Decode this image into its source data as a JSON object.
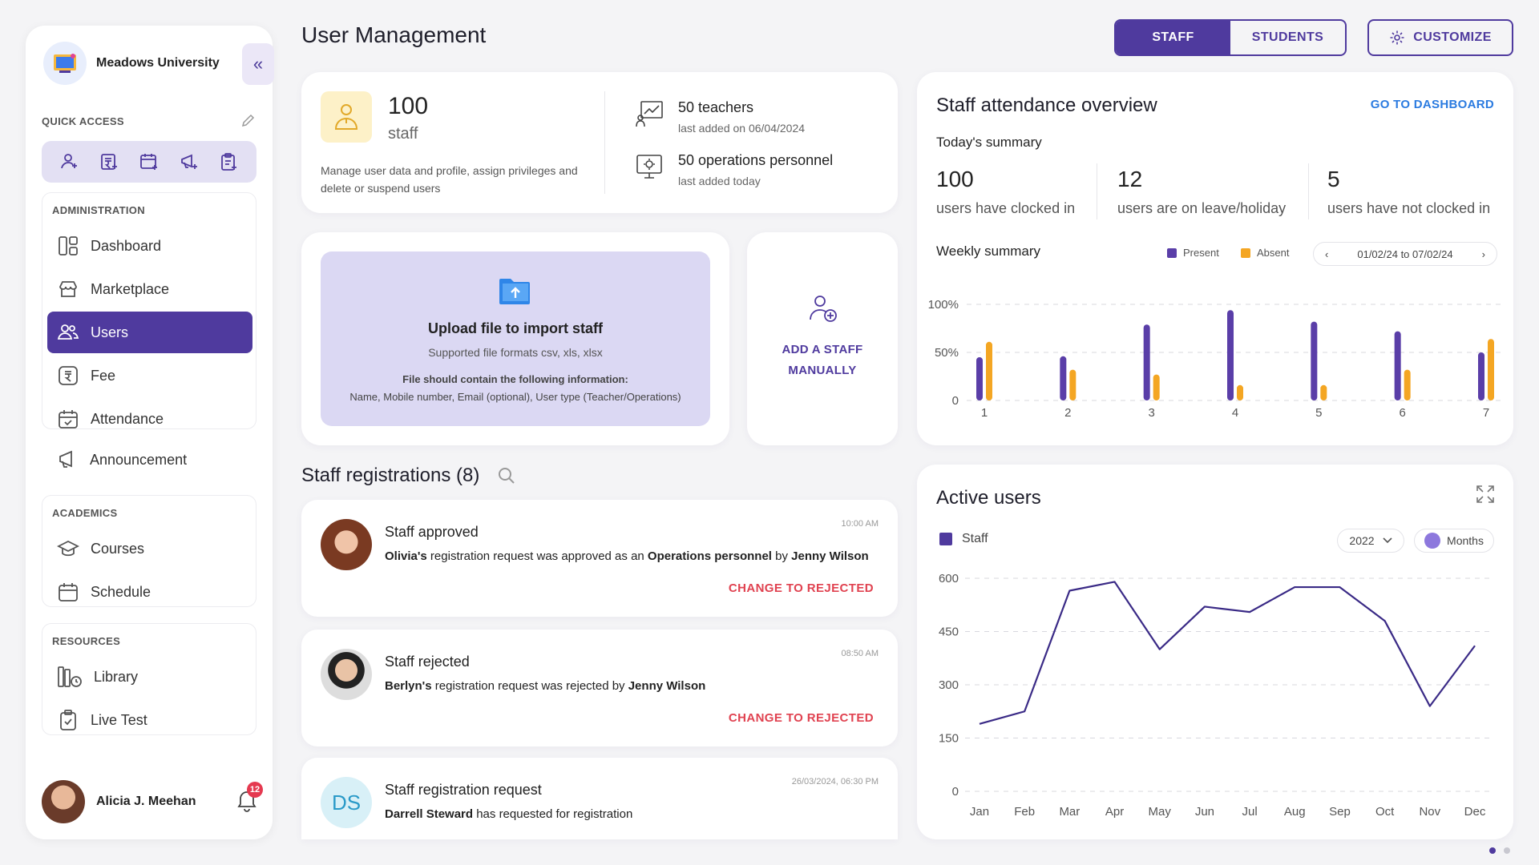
{
  "brand": {
    "name": "Meadows University"
  },
  "sidebar": {
    "quick_access_title": "QUICK ACCESS",
    "quick_icons": [
      "add-user-icon",
      "fee-icon",
      "calendar-icon",
      "announcement-icon",
      "clipboard-icon"
    ],
    "groups": [
      {
        "title": "ADMINISTRATION",
        "items": [
          {
            "label": "Dashboard",
            "icon": "dashboard-icon"
          },
          {
            "label": "Marketplace",
            "icon": "marketplace-icon"
          },
          {
            "label": "Users",
            "icon": "users-icon",
            "active": true
          },
          {
            "label": "Fee",
            "icon": "fee-icon"
          },
          {
            "label": "Attendance",
            "icon": "attendance-icon"
          },
          {
            "label": "Announcement",
            "icon": "announcement-icon"
          }
        ]
      },
      {
        "title": "ACADEMICS",
        "items": [
          {
            "label": "Courses",
            "icon": "courses-icon"
          },
          {
            "label": "Schedule",
            "icon": "schedule-icon"
          }
        ]
      },
      {
        "title": "RESOURCES",
        "items": [
          {
            "label": "Library",
            "icon": "library-icon"
          },
          {
            "label": "Live Test",
            "icon": "live-test-icon"
          }
        ]
      }
    ],
    "profile": {
      "name": "Alicia J. Meehan",
      "notifications": "12"
    }
  },
  "header": {
    "title": "User Management",
    "tabs": [
      "STAFF",
      "STUDENTS"
    ],
    "active_tab": "STAFF",
    "customize_label": "CUSTOMIZE"
  },
  "stats": {
    "count": "100",
    "label": "staff",
    "description": "Manage user data and profile, assign privileges and delete or suspend users",
    "teachers": "50 teachers",
    "teachers_sub": "last added on 06/04/2024",
    "operations": "50 operations personnel",
    "operations_sub": "last added today"
  },
  "upload": {
    "title": "Upload file to import staff",
    "formats": "Supported file formats csv, xls, xlsx",
    "requirement": "File should contain the following information:",
    "fields": "Name, Mobile number, Email (optional), User type (Teacher/Operations)"
  },
  "add_staff": {
    "line1": "ADD A STAFF",
    "line2": "MANUALLY"
  },
  "registrations": {
    "title": "Staff registrations (8)",
    "items": [
      {
        "heading": "Staff approved",
        "time": "10:00 AM",
        "name": "Olivia's",
        "text1": " registration request was approved as an ",
        "role": "Operations personnel",
        "text2": " by ",
        "actor": "Jenny Wilson",
        "action": "CHANGE TO REJECTED"
      },
      {
        "heading": "Staff rejected",
        "time": "08:50 AM",
        "name": "Berlyn's",
        "text1": " registration request was rejected by ",
        "actor": "Jenny Wilson",
        "action": "CHANGE TO REJECTED"
      },
      {
        "heading": "Staff registration request",
        "time": "26/03/2024, 06:30 PM",
        "initials": "DS",
        "name": "Darrell Steward",
        "text1": " has requested for registration"
      }
    ]
  },
  "attendance": {
    "title": "Staff attendance overview",
    "link": "GO TO DASHBOARD",
    "today_title": "Today's summary",
    "summary": [
      {
        "value": "100",
        "label": "users have clocked in"
      },
      {
        "value": "12",
        "label": "users are on leave/holiday"
      },
      {
        "value": "5",
        "label": "users have not clocked in"
      }
    ],
    "weekly_title": "Weekly summary",
    "legend": [
      "Present",
      "Absent"
    ],
    "date_range": "01/02/24 to 07/02/24"
  },
  "active_users": {
    "title": "Active users",
    "legend": "Staff",
    "year": "2022",
    "period": "Months"
  },
  "colors": {
    "primary": "#4f3a9e",
    "present": "#5a3ea8",
    "absent": "#f4a623",
    "danger": "#e04250",
    "link": "#2b7be0"
  },
  "chart_data": [
    {
      "type": "bar",
      "title": "Weekly summary",
      "categories": [
        "1",
        "2",
        "3",
        "4",
        "5",
        "6",
        "7"
      ],
      "series": [
        {
          "name": "Present",
          "values": [
            45,
            46,
            79,
            94,
            82,
            72,
            50
          ]
        },
        {
          "name": "Absent",
          "values": [
            61,
            32,
            27,
            16,
            16,
            32,
            64
          ]
        }
      ],
      "ylim": [
        0,
        100
      ],
      "yticks": [
        "0",
        "50%",
        "100%"
      ],
      "grid": true
    },
    {
      "type": "line",
      "title": "Active users",
      "categories": [
        "Jan",
        "Feb",
        "Mar",
        "Apr",
        "May",
        "Jun",
        "Jul",
        "Aug",
        "Sep",
        "Oct",
        "Nov",
        "Dec"
      ],
      "series": [
        {
          "name": "Staff",
          "values": [
            190,
            225,
            565,
            590,
            400,
            520,
            505,
            575,
            575,
            480,
            240,
            410
          ]
        }
      ],
      "ylim": [
        0,
        600
      ],
      "yticks": [
        0,
        150,
        300,
        450,
        600
      ],
      "grid": true
    }
  ]
}
